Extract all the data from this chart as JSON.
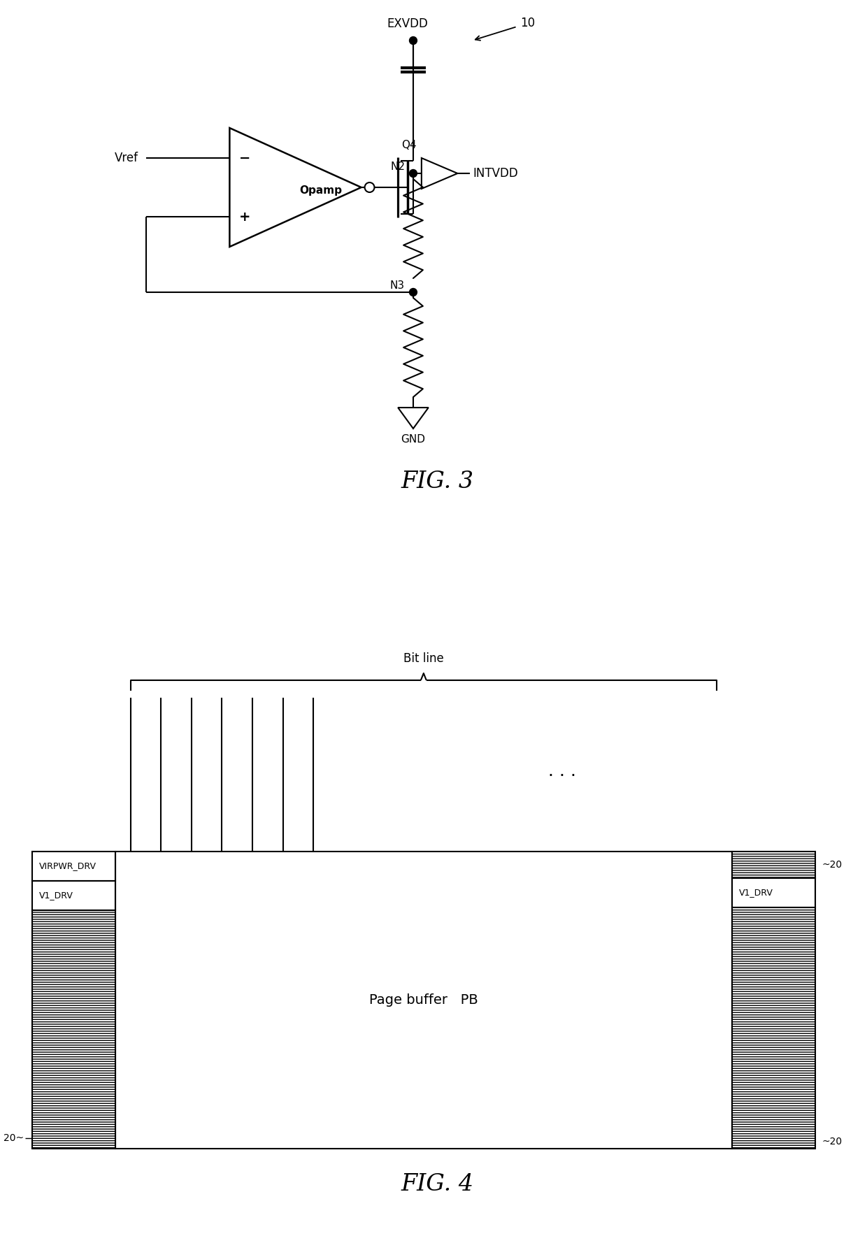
{
  "fig_width": 12.4,
  "fig_height": 17.98,
  "bg_color": "#ffffff",
  "line_color": "#000000",
  "fig3_title": "FIG. 3",
  "fig4_title": "FIG. 4",
  "label_10": "10",
  "label_exvdd": "EXVDD",
  "label_intvdd": "INTVDD",
  "label_gnd": "GND",
  "label_vref": "Vref",
  "label_opamp": "Opamp",
  "label_q4": "Q4",
  "label_n2": "N2",
  "label_n3": "N3",
  "label_bitline": "Bit line",
  "label_pagebuffer": "Page buffer",
  "label_pb": "PB",
  "label_virpwr": "VIRPWR_DRV",
  "label_v1drv": "V1_DRV",
  "label_20": "20"
}
